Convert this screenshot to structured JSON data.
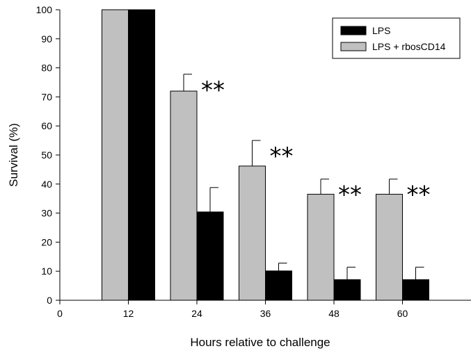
{
  "chart_data": {
    "type": "bar",
    "title": "",
    "xlabel": "Hours relative to challenge",
    "ylabel": "Survival (%)",
    "xlim": [
      0,
      72
    ],
    "ylim": [
      0,
      100
    ],
    "x_ticks": [
      "0",
      "12",
      "24",
      "36",
      "48",
      "60"
    ],
    "x_tick_values": [
      0,
      12,
      24,
      36,
      48,
      60
    ],
    "y_ticks": [
      "0",
      "10",
      "20",
      "30",
      "40",
      "50",
      "60",
      "70",
      "80",
      "90",
      "100"
    ],
    "y_tick_values": [
      0,
      10,
      20,
      30,
      40,
      50,
      60,
      70,
      80,
      90,
      100
    ],
    "categories": [
      12,
      24,
      36,
      48,
      60
    ],
    "series": [
      {
        "name": "LPS + rbosCD14",
        "color": "#c0c0c0",
        "values": [
          100,
          72,
          46.2,
          36.5,
          36.5
        ],
        "errors": [
          0,
          5.8,
          8.8,
          5.2,
          5.2
        ]
      },
      {
        "name": "LPS",
        "color": "#000000",
        "values": [
          100,
          30.4,
          10.1,
          7.1,
          7.1
        ],
        "errors": [
          0,
          8.4,
          2.7,
          4.3,
          4.3
        ]
      }
    ],
    "legend": {
      "placement": "top-right",
      "entries": [
        {
          "label": "LPS",
          "color": "#000000"
        },
        {
          "label": "LPS + rbosCD14",
          "color": "#c0c0c0"
        }
      ]
    },
    "annotations": [
      {
        "text": "**",
        "x": 24
      },
      {
        "text": "**",
        "x": 36
      },
      {
        "text": "**",
        "x": 48
      },
      {
        "text": "**",
        "x": 60
      }
    ],
    "grid": false
  }
}
